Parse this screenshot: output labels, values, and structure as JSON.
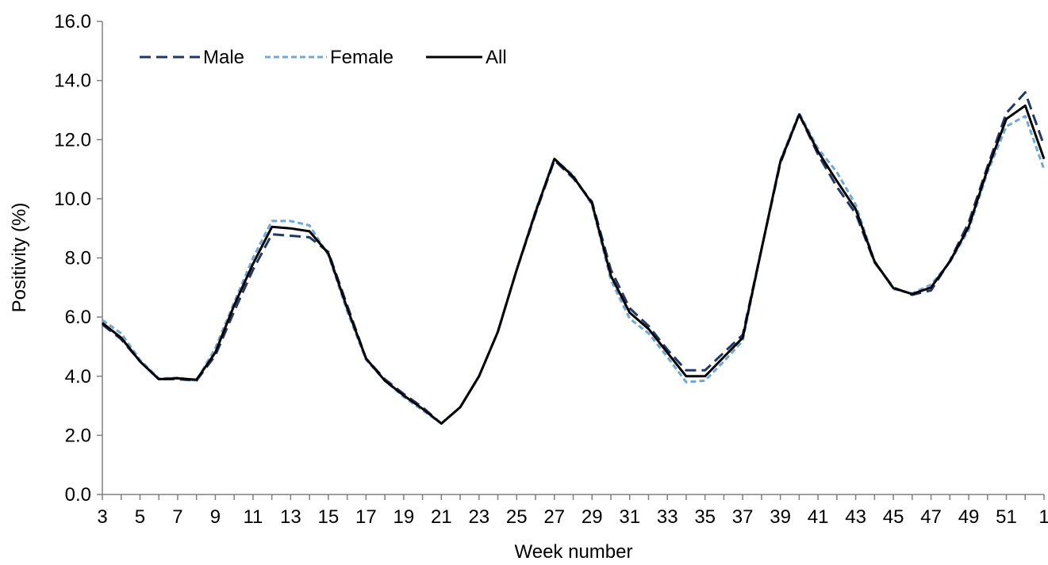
{
  "chart_data": {
    "type": "line",
    "title": "",
    "xlabel": "Week number",
    "ylabel": "Positivity (%)",
    "ylim": [
      0,
      16
    ],
    "yticks": [
      "0.0",
      "2.0",
      "4.0",
      "6.0",
      "8.0",
      "10.0",
      "12.0",
      "14.0",
      "16.0"
    ],
    "categories": [
      "3",
      "4",
      "5",
      "6",
      "7",
      "8",
      "9",
      "10",
      "11",
      "12",
      "13",
      "14",
      "15",
      "16",
      "17",
      "18",
      "19",
      "20",
      "21",
      "22",
      "23",
      "24",
      "25",
      "26",
      "27",
      "28",
      "29",
      "30",
      "31",
      "32",
      "33",
      "34",
      "35",
      "36",
      "37",
      "38",
      "39",
      "40",
      "41",
      "42",
      "43",
      "44",
      "45",
      "46",
      "47",
      "48",
      "49",
      "50",
      "51",
      "52",
      "1"
    ],
    "xtick_labels": [
      "3",
      "5",
      "7",
      "9",
      "11",
      "13",
      "15",
      "17",
      "19",
      "21",
      "23",
      "25",
      "27",
      "29",
      "31",
      "33",
      "35",
      "37",
      "39",
      "41",
      "43",
      "45",
      "47",
      "49",
      "51",
      "1"
    ],
    "grid": false,
    "legend_position": "top-left",
    "series": [
      {
        "name": "Male",
        "color": "#1f3864",
        "style": "dashed",
        "values": [
          5.75,
          5.25,
          4.5,
          3.9,
          3.9,
          3.85,
          4.7,
          6.2,
          7.6,
          8.8,
          8.75,
          8.7,
          8.2,
          6.4,
          4.6,
          3.9,
          3.4,
          2.95,
          2.4,
          2.95,
          4.0,
          5.5,
          7.6,
          9.5,
          11.3,
          10.7,
          9.9,
          7.6,
          6.3,
          5.7,
          4.9,
          4.2,
          4.2,
          4.8,
          5.4,
          8.3,
          11.2,
          12.85,
          11.5,
          10.4,
          9.5,
          7.85,
          7.0,
          6.75,
          6.9,
          7.9,
          9.2,
          11.1,
          12.9,
          13.6,
          11.8
        ]
      },
      {
        "name": "Female",
        "color": "#6fa8d6",
        "style": "dashed",
        "values": [
          5.9,
          5.45,
          4.55,
          3.92,
          3.95,
          3.85,
          4.95,
          6.5,
          8.0,
          9.25,
          9.25,
          9.1,
          8.1,
          6.2,
          4.55,
          3.85,
          3.3,
          2.85,
          2.4,
          2.95,
          4.0,
          5.5,
          7.6,
          9.6,
          11.35,
          10.8,
          9.8,
          7.25,
          5.95,
          5.45,
          4.65,
          3.8,
          3.85,
          4.5,
          5.2,
          8.3,
          11.3,
          12.9,
          11.7,
          10.9,
          9.8,
          7.9,
          6.95,
          6.8,
          7.1,
          7.85,
          8.95,
          10.9,
          12.45,
          12.8,
          11.0
        ]
      },
      {
        "name": "All",
        "color": "#000000",
        "style": "solid",
        "values": [
          5.8,
          5.3,
          4.5,
          3.9,
          3.93,
          3.88,
          4.8,
          6.4,
          7.8,
          9.05,
          9.0,
          8.9,
          8.15,
          6.3,
          4.6,
          3.85,
          3.35,
          2.9,
          2.4,
          2.95,
          4.0,
          5.5,
          7.6,
          9.55,
          11.35,
          10.75,
          9.85,
          7.4,
          6.15,
          5.6,
          4.8,
          4.0,
          4.0,
          4.65,
          5.3,
          8.3,
          11.25,
          12.85,
          11.6,
          10.6,
          9.65,
          7.88,
          6.98,
          6.78,
          7.0,
          7.88,
          9.05,
          11.0,
          12.7,
          13.15,
          11.35
        ]
      }
    ]
  }
}
